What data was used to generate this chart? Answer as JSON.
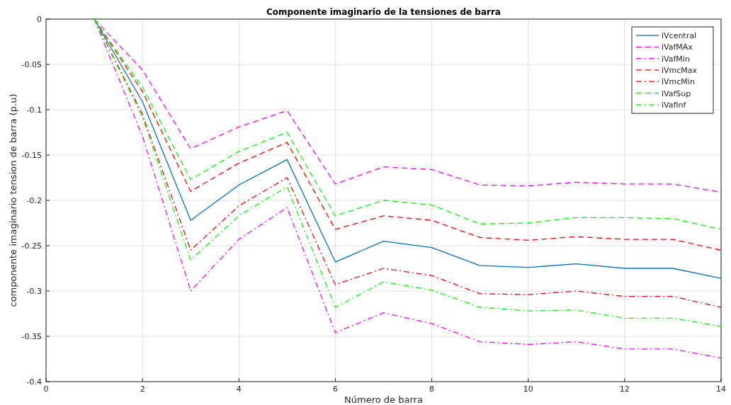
{
  "chart_data": {
    "type": "line",
    "title": "Componente imaginario de la tensiones de barra",
    "xlabel": "Número de barra",
    "ylabel": "componente imaginario tension de barra (p.u)",
    "x": [
      1,
      2,
      3,
      4,
      5,
      6,
      7,
      8,
      9,
      10,
      11,
      12,
      13,
      14
    ],
    "xlim": [
      0,
      14
    ],
    "xticks": [
      0,
      2,
      4,
      6,
      8,
      10,
      12,
      14
    ],
    "ylim": [
      -0.4,
      0
    ],
    "yticks": [
      -0.4,
      -0.35,
      -0.3,
      -0.25,
      -0.2,
      -0.15,
      -0.1,
      -0.05,
      0
    ],
    "grid": true,
    "legend": "top right",
    "marker": "none",
    "series": [
      {
        "name": "iVcentral",
        "color": "#0072bd",
        "line_style": "solid",
        "values": [
          0,
          -0.091,
          -0.222,
          -0.183,
          -0.155,
          -0.268,
          -0.245,
          -0.252,
          -0.272,
          -0.274,
          -0.27,
          -0.275,
          -0.275,
          -0.286
        ]
      },
      {
        "name": "iVafMAx",
        "color": "#ff00ff",
        "line_style": "dashed",
        "values": [
          0,
          -0.056,
          -0.143,
          -0.119,
          -0.101,
          -0.182,
          -0.163,
          -0.166,
          -0.183,
          -0.184,
          -0.18,
          -0.182,
          -0.182,
          -0.191
        ]
      },
      {
        "name": "iVafMin",
        "color": "#ff00ff",
        "line_style": "dashdot",
        "values": [
          0,
          -0.129,
          -0.3,
          -0.243,
          -0.208,
          -0.346,
          -0.324,
          -0.336,
          -0.356,
          -0.359,
          -0.356,
          -0.364,
          -0.364,
          -0.374
        ]
      },
      {
        "name": "iVmcMax",
        "color": "#ff0000",
        "line_style": "dashed",
        "values": [
          0,
          -0.08,
          -0.19,
          -0.159,
          -0.136,
          -0.232,
          -0.217,
          -0.222,
          -0.241,
          -0.244,
          -0.24,
          -0.243,
          -0.243,
          -0.255
        ]
      },
      {
        "name": "iVmcMin",
        "color": "#ff0000",
        "line_style": "dashdot",
        "values": [
          0,
          -0.105,
          -0.255,
          -0.206,
          -0.175,
          -0.293,
          -0.275,
          -0.283,
          -0.303,
          -0.304,
          -0.3,
          -0.306,
          -0.306,
          -0.318
        ]
      },
      {
        "name": "iVafSup",
        "color": "#00ff00",
        "line_style": "dashed",
        "values": [
          0,
          -0.075,
          -0.177,
          -0.146,
          -0.125,
          -0.217,
          -0.2,
          -0.205,
          -0.226,
          -0.225,
          -0.219,
          -0.219,
          -0.22,
          -0.232
        ]
      },
      {
        "name": "iVafInf",
        "color": "#00ff00",
        "line_style": "dashdot",
        "values": [
          0,
          -0.108,
          -0.266,
          -0.217,
          -0.185,
          -0.318,
          -0.29,
          -0.299,
          -0.318,
          -0.322,
          -0.321,
          -0.33,
          -0.33,
          -0.339
        ]
      }
    ]
  }
}
